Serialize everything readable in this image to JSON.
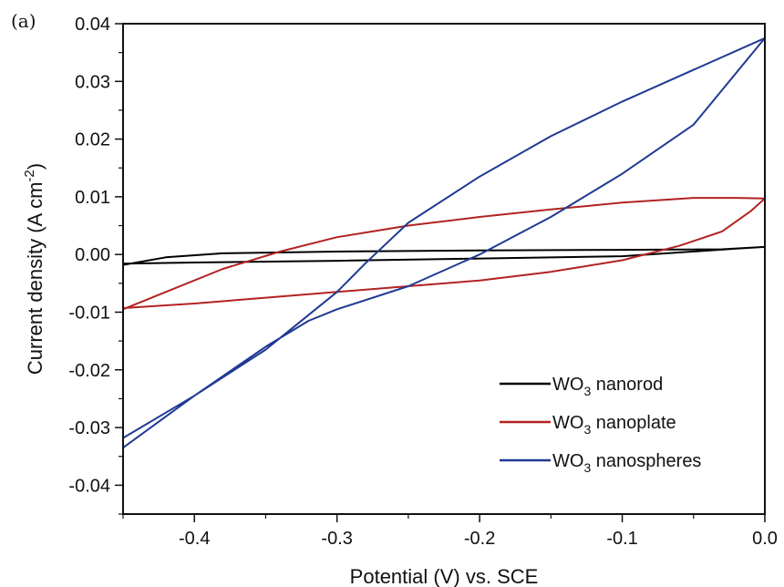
{
  "panel_label": "(a)",
  "colors": {
    "nanorod": "#000000",
    "nanoplate": "#b22222",
    "nanospheres": "#1f3a93"
  },
  "chart_data": {
    "type": "line",
    "xlabel": "Potential (V) vs. SCE",
    "ylabel": {
      "main": "Current density (A cm",
      "sup": "-2",
      "end": ")"
    },
    "xlim": [
      -0.45,
      0.0
    ],
    "ylim": [
      -0.045,
      0.04
    ],
    "xticks": [
      -0.4,
      -0.3,
      -0.2,
      -0.1,
      0.0
    ],
    "xtick_labels": [
      "-0.4",
      "-0.3",
      "-0.2",
      "-0.1",
      "0.0"
    ],
    "yticks": [
      -0.04,
      -0.03,
      -0.02,
      -0.01,
      0.0,
      0.01,
      0.02,
      0.03,
      0.04
    ],
    "ytick_labels": [
      "-0.04",
      "-0.03",
      "-0.02",
      "-0.01",
      "0.00",
      "0.01",
      "0.02",
      "0.03",
      "0.04"
    ],
    "legend_position": "bottom-right",
    "series": [
      {
        "key": "nanorod",
        "name_main": "WO",
        "name_sub": "3",
        "name_end": " nanorod",
        "color": "#000000",
        "x": [
          -0.45,
          -0.42,
          -0.38,
          -0.3,
          -0.2,
          -0.1,
          -0.03,
          0.0,
          -0.02,
          -0.1,
          -0.2,
          -0.3,
          -0.4,
          -0.45
        ],
        "y": [
          -0.0018,
          -0.0005,
          0.0002,
          0.0005,
          0.0007,
          0.0008,
          0.0009,
          0.0013,
          0.001,
          -0.0003,
          -0.0007,
          -0.0011,
          -0.0014,
          -0.0016
        ]
      },
      {
        "key": "nanoplate",
        "name_main": "WO",
        "name_sub": "3",
        "name_end": " nanoplate",
        "color": "#b22222",
        "x": [
          -0.45,
          -0.42,
          -0.38,
          -0.34,
          -0.3,
          -0.25,
          -0.2,
          -0.15,
          -0.1,
          -0.05,
          -0.02,
          0.0,
          -0.01,
          -0.03,
          -0.06,
          -0.1,
          -0.15,
          -0.2,
          -0.25,
          -0.3,
          -0.35,
          -0.4,
          -0.45
        ],
        "y": [
          -0.0095,
          -0.0065,
          -0.0025,
          0.0005,
          0.003,
          0.005,
          0.0065,
          0.0078,
          0.009,
          0.0098,
          0.0098,
          0.0097,
          0.0075,
          0.004,
          0.0015,
          -0.001,
          -0.003,
          -0.0045,
          -0.0055,
          -0.0065,
          -0.0075,
          -0.0085,
          -0.0093
        ]
      },
      {
        "key": "nanospheres",
        "name_main": "WO",
        "name_sub": "3",
        "name_end": " nanospheres",
        "color": "#1f3a93",
        "x": [
          -0.45,
          -0.4,
          -0.35,
          -0.3,
          -0.28,
          -0.25,
          -0.2,
          -0.15,
          -0.1,
          -0.05,
          0.0,
          -0.05,
          -0.1,
          -0.15,
          -0.2,
          -0.25,
          -0.3,
          -0.32,
          -0.35,
          -0.4,
          -0.45
        ],
        "y": [
          -0.0318,
          -0.0245,
          -0.0165,
          -0.0065,
          -0.0015,
          0.0055,
          0.0135,
          0.0205,
          0.0265,
          0.032,
          0.0375,
          0.0225,
          0.014,
          0.0065,
          0.0,
          -0.0055,
          -0.0095,
          -0.0115,
          -0.016,
          -0.0245,
          -0.0335
        ]
      }
    ]
  }
}
